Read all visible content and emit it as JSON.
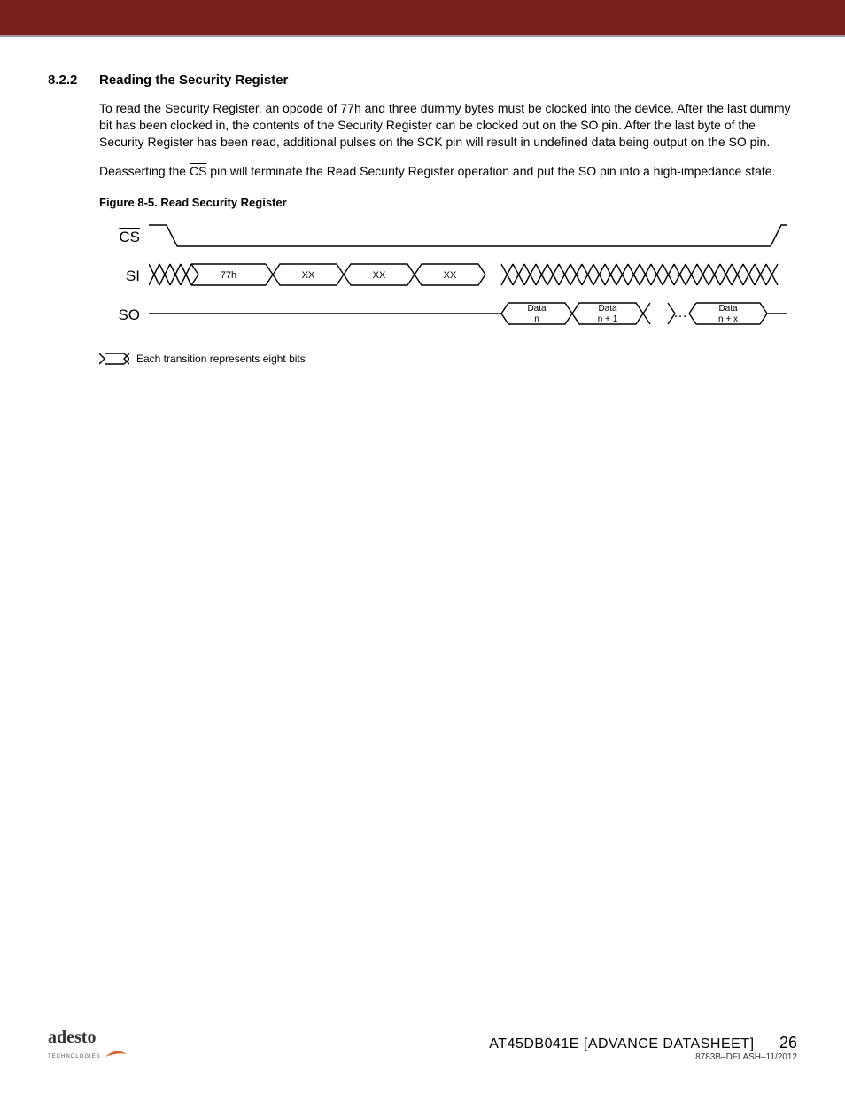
{
  "header": {
    "band_color": "#7c201e",
    "rule_color": "#999999"
  },
  "section": {
    "number": "8.2.2",
    "title": "Reading the Security Register",
    "para1": "To read the Security Register, an opcode of 77h and three dummy bytes must be clocked into the device. After the last dummy bit has been clocked in, the contents of the Security Register can be clocked out on the SO pin. After the last byte of the Security Register has been read, additional pulses on the SCK pin will result in undefined data being output on the SO pin.",
    "para2_pre": "Deasserting the ",
    "para2_cs": "CS",
    "para2_post": " pin will terminate the Read Security Register operation and put the SO pin into a high-impedance state."
  },
  "figure": {
    "caption": "Figure 8-5.   Read Security Register",
    "signals": {
      "cs": "CS",
      "si": "SI",
      "so": "SO"
    },
    "si_bytes": [
      "77h",
      "XX",
      "XX",
      "XX"
    ],
    "so_bytes": [
      "Data\nn",
      "Data\nn + 1",
      "Data\nn + x"
    ],
    "ellipsis": "…",
    "legend": "Each transition represents eight bits",
    "stroke": "#000000",
    "stroke_width": 1.4
  },
  "footer": {
    "logo_main": "adesto",
    "logo_sub": "TECHNOLOGIES",
    "doc_title": "AT45DB041E [ADVANCE DATASHEET]",
    "doc_code": "8783B–DFLASH–11/2012",
    "page": "26",
    "swoosh_color": "#d8632a"
  }
}
